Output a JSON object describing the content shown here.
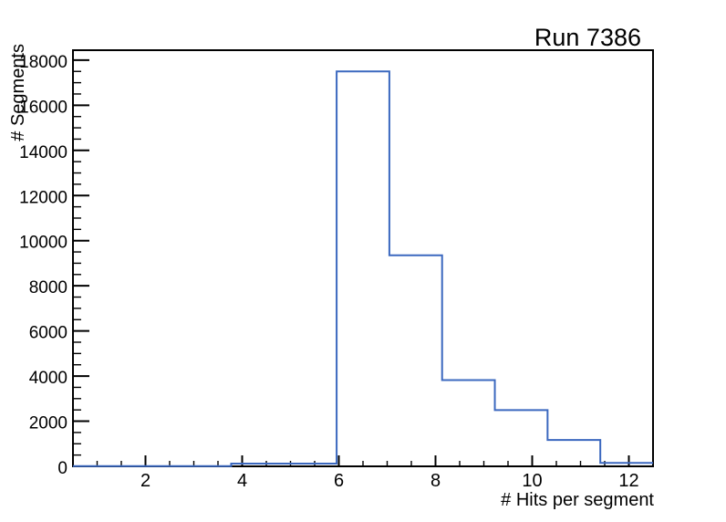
{
  "chart_data": {
    "type": "bar",
    "subtype": "step-histogram",
    "title": "Run 7386",
    "xlabel": "# Hits per segment",
    "ylabel": "# Segments",
    "xlim": [
      0.5,
      12.5
    ],
    "ylim": [
      0,
      18440
    ],
    "bin_edges": [
      0.5,
      1.5909,
      2.6818,
      3.7727,
      4.8636,
      5.9545,
      7.0455,
      8.1364,
      9.2273,
      10.3182,
      11.4091,
      12.5
    ],
    "counts": [
      10,
      10,
      10,
      120,
      120,
      17500,
      9350,
      3820,
      2490,
      1170,
      150
    ],
    "x_ticks": [
      2,
      4,
      6,
      8,
      10,
      12
    ],
    "x_minor_step": 0.5,
    "y_ticks": [
      0,
      2000,
      4000,
      6000,
      8000,
      10000,
      12000,
      14000,
      16000,
      18000
    ],
    "y_minor_step": 500,
    "grid": false,
    "legend_position": "none",
    "line_color": "#3b68bf",
    "axis_color": "#000000",
    "background_color": "#ffffff"
  }
}
